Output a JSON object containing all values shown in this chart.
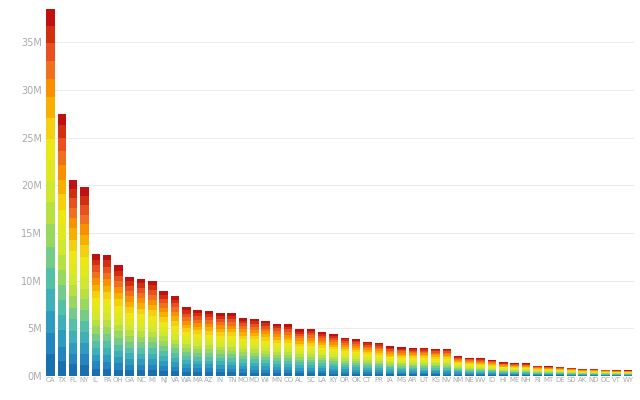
{
  "states": [
    "CA",
    "TX",
    "FL",
    "NY",
    "IL",
    "PA",
    "OH",
    "GA",
    "NC",
    "MI",
    "NJ",
    "VA",
    "WA",
    "MA",
    "AZ",
    "IN",
    "TN",
    "MO",
    "MD",
    "WI",
    "MN",
    "CO",
    "AL",
    "SC",
    "LA",
    "KY",
    "OR",
    "OK",
    "CT",
    "PR",
    "IA",
    "MS",
    "AR",
    "UT",
    "KS",
    "NV",
    "NM",
    "NE",
    "WV",
    "ID",
    "HI",
    "ME",
    "NH",
    "RI",
    "MT",
    "DE",
    "SD",
    "AK",
    "ND",
    "DC",
    "VT",
    "WY"
  ],
  "totals": [
    38500000,
    27500000,
    20600000,
    19800000,
    12800000,
    12700000,
    11600000,
    10400000,
    10200000,
    10000000,
    8900000,
    8400000,
    7200000,
    6900000,
    6800000,
    6600000,
    6600000,
    6100000,
    6000000,
    5800000,
    5500000,
    5400000,
    4900000,
    4900000,
    4600000,
    4400000,
    4000000,
    3900000,
    3600000,
    3500000,
    3100000,
    3000000,
    2950000,
    2950000,
    2870000,
    2830000,
    2090000,
    1920000,
    1850000,
    1680000,
    1420000,
    1340000,
    1330000,
    1060000,
    1020000,
    935000,
    850000,
    736000,
    724000,
    658000,
    625000,
    582000
  ],
  "num_groups": 18,
  "colors": [
    "#1a6faf",
    "#2585bf",
    "#2e9cbf",
    "#40b0b8",
    "#55c0a8",
    "#75cc88",
    "#98d860",
    "#b8e040",
    "#d0e830",
    "#e0e820",
    "#ece818",
    "#f5d010",
    "#f8b000",
    "#f89000",
    "#f07020",
    "#e85020",
    "#d03010",
    "#c01010"
  ],
  "background_color": "#ffffff",
  "ylabel_ticks": [
    "0M",
    "5M",
    "10M",
    "15M",
    "20M",
    "25M",
    "30M",
    "35M"
  ],
  "ylabel_values": [
    0,
    5000000,
    10000000,
    15000000,
    20000000,
    25000000,
    30000000,
    35000000
  ],
  "ymax": 39000000
}
